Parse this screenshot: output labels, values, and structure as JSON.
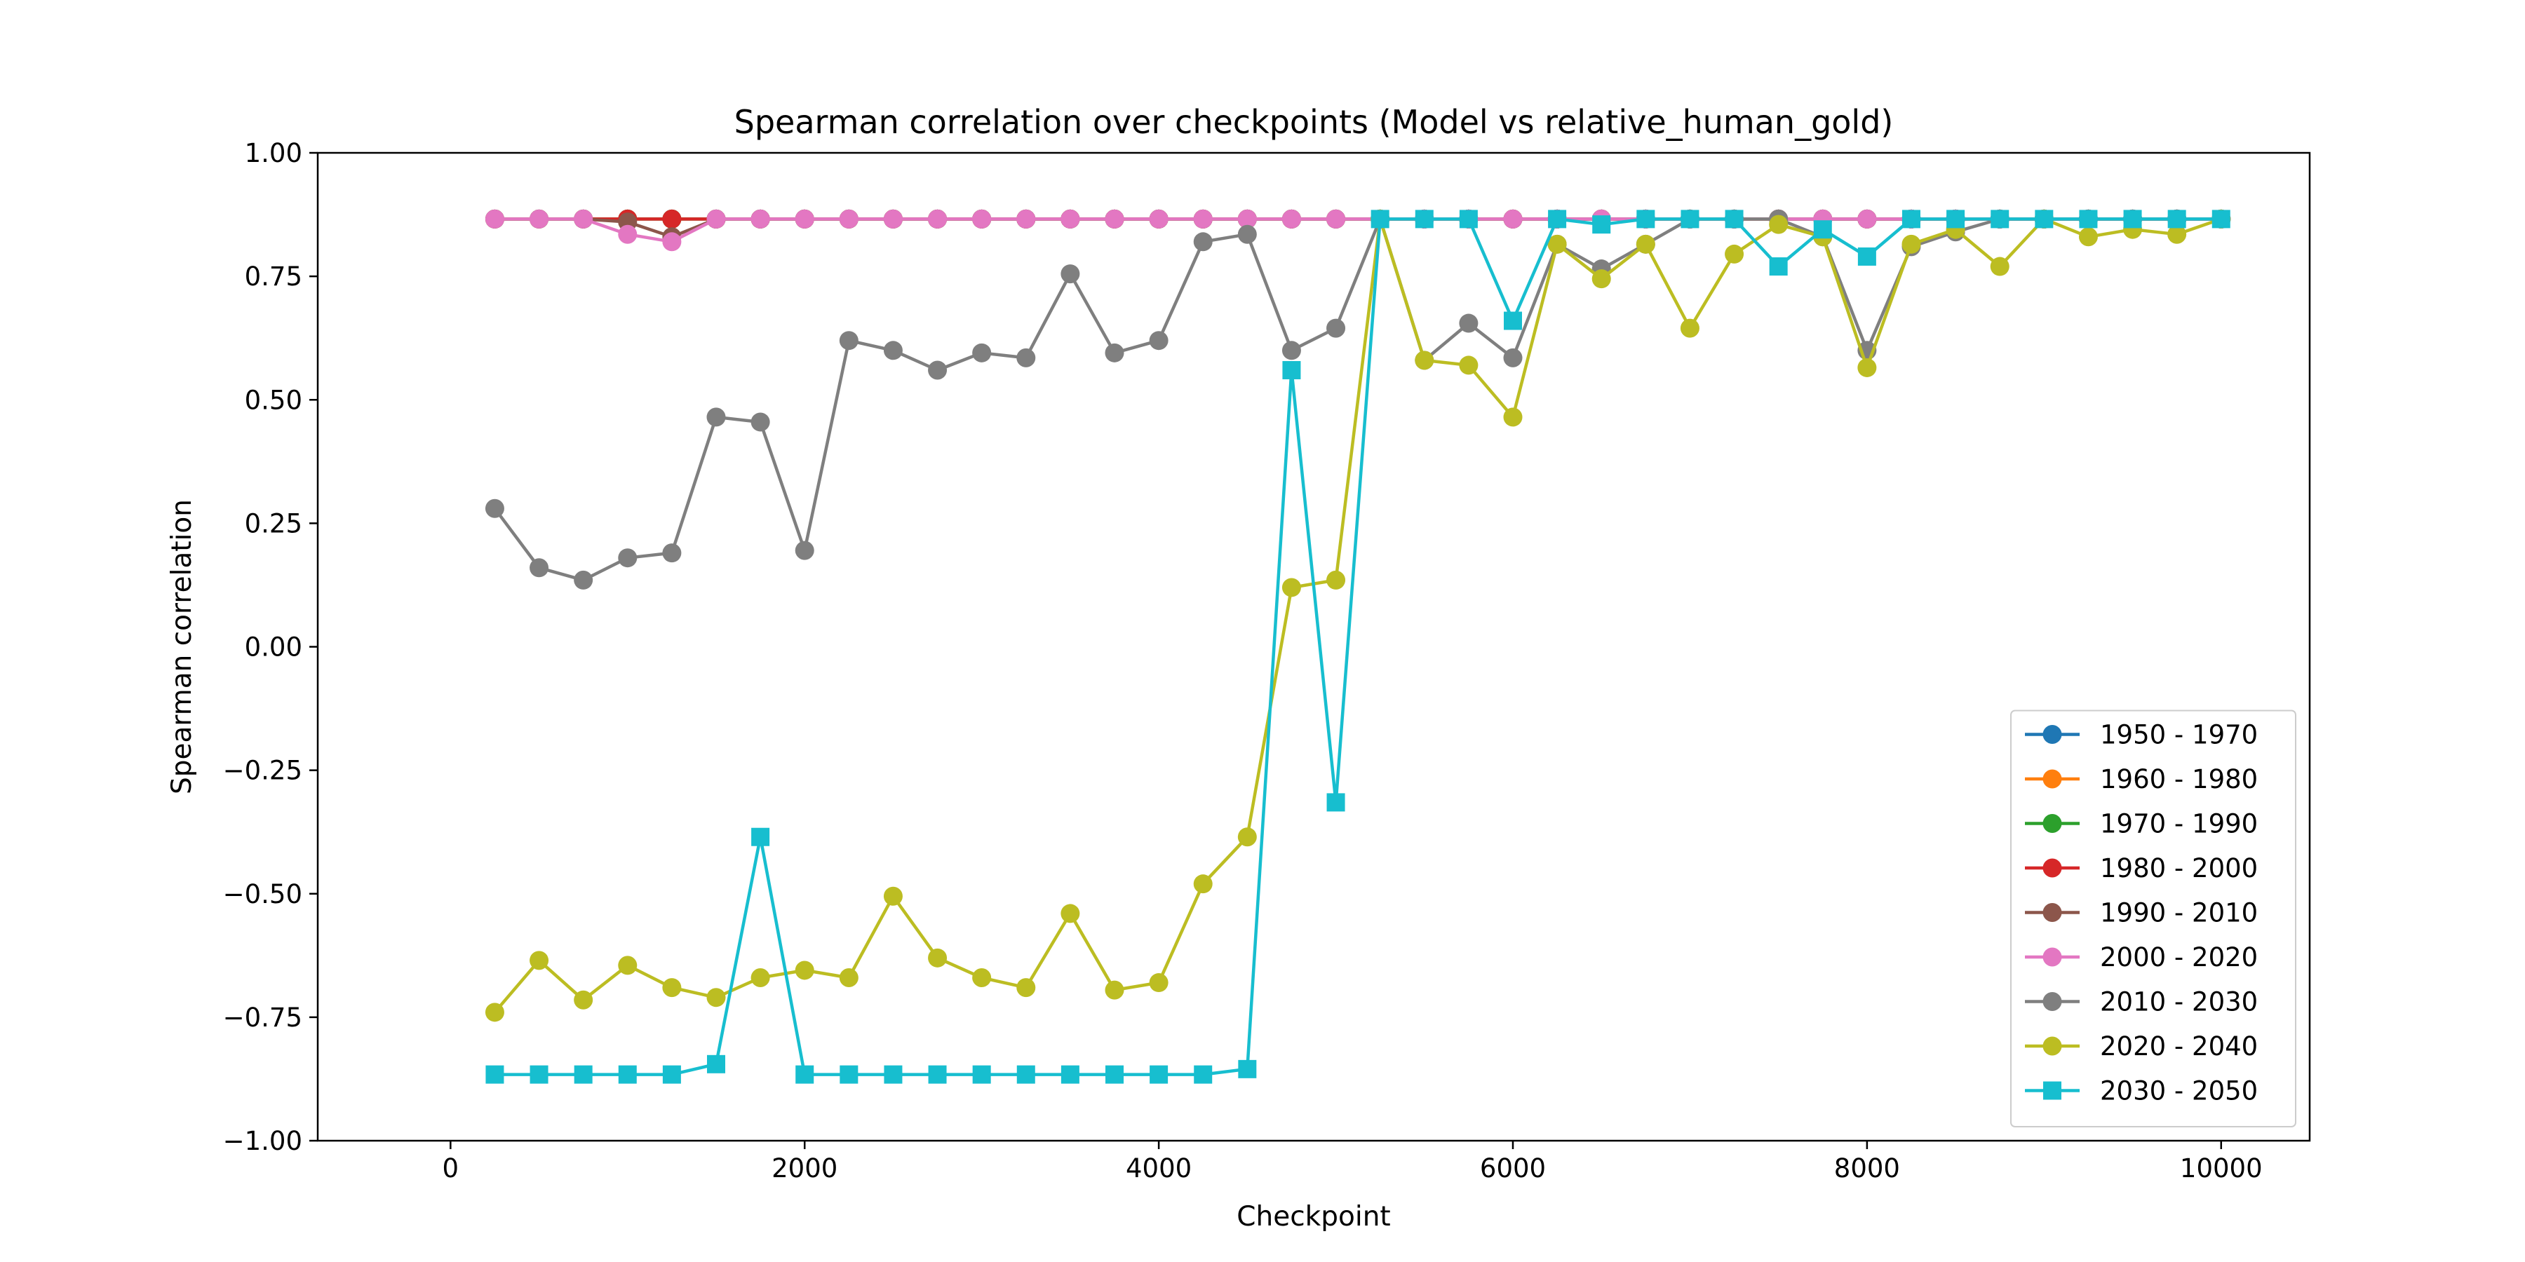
{
  "chart_data": {
    "type": "line",
    "title": "Spearman correlation over checkpoints (Model vs relative_human_gold)",
    "xlabel": "Checkpoint",
    "ylabel": "Spearman correlation",
    "xlim": [
      -750,
      10500
    ],
    "ylim": [
      -1.0,
      1.0
    ],
    "xticks": [
      0,
      2000,
      4000,
      6000,
      8000,
      10000
    ],
    "xtick_labels": [
      "0",
      "2000",
      "4000",
      "6000",
      "8000",
      "10000"
    ],
    "yticks": [
      -1.0,
      -0.75,
      -0.5,
      -0.25,
      0.0,
      0.25,
      0.5,
      0.75,
      1.0
    ],
    "ytick_labels": [
      "−1.00",
      "−0.75",
      "−0.50",
      "−0.25",
      "0.00",
      "0.25",
      "0.50",
      "0.75",
      "1.00"
    ],
    "grid": false,
    "legend_position": "lower-right",
    "x": [
      250,
      500,
      750,
      1000,
      1250,
      1500,
      1750,
      2000,
      2250,
      2500,
      2750,
      3000,
      3250,
      3500,
      3750,
      4000,
      4250,
      4500,
      4750,
      5000,
      5250,
      5500,
      5750,
      6000,
      6250,
      6500,
      6750,
      7000,
      7250,
      7500,
      7750,
      8000,
      8250,
      8500,
      8750,
      9000,
      9250,
      9500,
      9750,
      10000
    ],
    "series": [
      {
        "name": "1950 - 1970",
        "color": "#1f77b4",
        "marker": "circle",
        "values": [
          0.866,
          0.866,
          0.866,
          0.866,
          0.866,
          0.866,
          0.866,
          0.866,
          0.866,
          0.866,
          0.866,
          0.866,
          0.866,
          0.866,
          0.866,
          0.866,
          0.866,
          0.866,
          0.866,
          0.866,
          0.866,
          0.866,
          0.866,
          0.866,
          0.866,
          0.866,
          0.866,
          0.866,
          0.866,
          0.866,
          0.866,
          0.866,
          0.866,
          0.866,
          0.866,
          0.866,
          0.866,
          0.866,
          0.866,
          0.866
        ]
      },
      {
        "name": "1960 - 1980",
        "color": "#ff7f0e",
        "marker": "circle",
        "values": [
          0.866,
          0.866,
          0.866,
          0.866,
          0.866,
          0.866,
          0.866,
          0.866,
          0.866,
          0.866,
          0.866,
          0.866,
          0.866,
          0.866,
          0.866,
          0.866,
          0.866,
          0.866,
          0.866,
          0.866,
          0.866,
          0.866,
          0.866,
          0.866,
          0.866,
          0.866,
          0.866,
          0.866,
          0.866,
          0.866,
          0.866,
          0.866,
          0.866,
          0.866,
          0.866,
          0.866,
          0.866,
          0.866,
          0.866,
          0.866
        ]
      },
      {
        "name": "1970 - 1990",
        "color": "#2ca02c",
        "marker": "circle",
        "values": [
          0.866,
          0.866,
          0.866,
          0.866,
          0.866,
          0.866,
          0.866,
          0.866,
          0.866,
          0.866,
          0.866,
          0.866,
          0.866,
          0.866,
          0.866,
          0.866,
          0.866,
          0.866,
          0.866,
          0.866,
          0.866,
          0.866,
          0.866,
          0.866,
          0.866,
          0.866,
          0.866,
          0.866,
          0.866,
          0.866,
          0.866,
          0.866,
          0.866,
          0.866,
          0.866,
          0.866,
          0.866,
          0.866,
          0.866,
          0.866
        ]
      },
      {
        "name": "1980 - 2000",
        "color": "#d62728",
        "marker": "circle",
        "values": [
          0.866,
          0.866,
          0.866,
          0.866,
          0.866,
          0.866,
          0.866,
          0.866,
          0.866,
          0.866,
          0.866,
          0.866,
          0.866,
          0.866,
          0.866,
          0.866,
          0.866,
          0.866,
          0.866,
          0.866,
          0.866,
          0.866,
          0.866,
          0.866,
          0.866,
          0.866,
          0.866,
          0.866,
          0.866,
          0.866,
          0.866,
          0.866,
          0.866,
          0.866,
          0.866,
          0.866,
          0.866,
          0.866,
          0.866,
          0.866
        ]
      },
      {
        "name": "1990 - 2010",
        "color": "#8c564b",
        "marker": "circle",
        "values": [
          0.866,
          0.866,
          0.866,
          0.86,
          0.83,
          0.866,
          0.866,
          0.866,
          0.866,
          0.866,
          0.866,
          0.866,
          0.866,
          0.866,
          0.866,
          0.866,
          0.866,
          0.866,
          0.866,
          0.866,
          0.866,
          0.866,
          0.866,
          0.866,
          0.866,
          0.866,
          0.866,
          0.866,
          0.866,
          0.866,
          0.866,
          0.866,
          0.866,
          0.866,
          0.866,
          0.866,
          0.866,
          0.866,
          0.866,
          0.866
        ]
      },
      {
        "name": "2000 - 2020",
        "color": "#e377c2",
        "marker": "circle",
        "values": [
          0.866,
          0.866,
          0.866,
          0.835,
          0.82,
          0.866,
          0.866,
          0.866,
          0.866,
          0.866,
          0.866,
          0.866,
          0.866,
          0.866,
          0.866,
          0.866,
          0.866,
          0.866,
          0.866,
          0.866,
          0.866,
          0.866,
          0.866,
          0.866,
          0.866,
          0.866,
          0.866,
          0.866,
          0.866,
          0.866,
          0.866,
          0.866,
          0.866,
          0.866,
          0.866,
          0.866,
          0.866,
          0.866,
          0.866,
          0.866
        ]
      },
      {
        "name": "2010 - 2030",
        "color": "#7f7f7f",
        "marker": "circle",
        "values": [
          0.28,
          0.16,
          0.135,
          0.18,
          0.19,
          0.465,
          0.455,
          0.195,
          0.62,
          0.6,
          0.56,
          0.595,
          0.585,
          0.755,
          0.595,
          0.62,
          0.82,
          0.835,
          0.6,
          0.645,
          0.866,
          0.58,
          0.655,
          0.585,
          0.815,
          0.765,
          0.815,
          0.866,
          0.866,
          0.866,
          0.83,
          0.6,
          0.81,
          0.84,
          0.866,
          0.866,
          0.866,
          0.866,
          0.866,
          0.866
        ]
      },
      {
        "name": "2020 - 2040",
        "color": "#bcbd22",
        "marker": "circle",
        "values": [
          -0.74,
          -0.635,
          -0.715,
          -0.645,
          -0.69,
          -0.71,
          -0.67,
          -0.655,
          -0.67,
          -0.505,
          -0.63,
          -0.67,
          -0.69,
          -0.54,
          -0.695,
          -0.68,
          -0.48,
          -0.385,
          0.12,
          0.135,
          0.866,
          0.58,
          0.57,
          0.465,
          0.815,
          0.745,
          0.815,
          0.645,
          0.795,
          0.855,
          0.83,
          0.565,
          0.815,
          0.845,
          0.77,
          0.866,
          0.83,
          0.845,
          0.835,
          0.866
        ]
      },
      {
        "name": "2030 - 2050",
        "color": "#17becf",
        "marker": "square",
        "values": [
          -0.866,
          -0.866,
          -0.866,
          -0.866,
          -0.866,
          -0.845,
          -0.385,
          -0.866,
          -0.866,
          -0.866,
          -0.866,
          -0.866,
          -0.866,
          -0.866,
          -0.866,
          -0.866,
          -0.866,
          -0.855,
          0.56,
          -0.315,
          0.866,
          0.866,
          0.866,
          0.66,
          0.866,
          0.855,
          0.866,
          0.866,
          0.866,
          0.77,
          0.845,
          0.79,
          0.866,
          0.866,
          0.866,
          0.866,
          0.866,
          0.866,
          0.866,
          0.866
        ]
      }
    ]
  }
}
